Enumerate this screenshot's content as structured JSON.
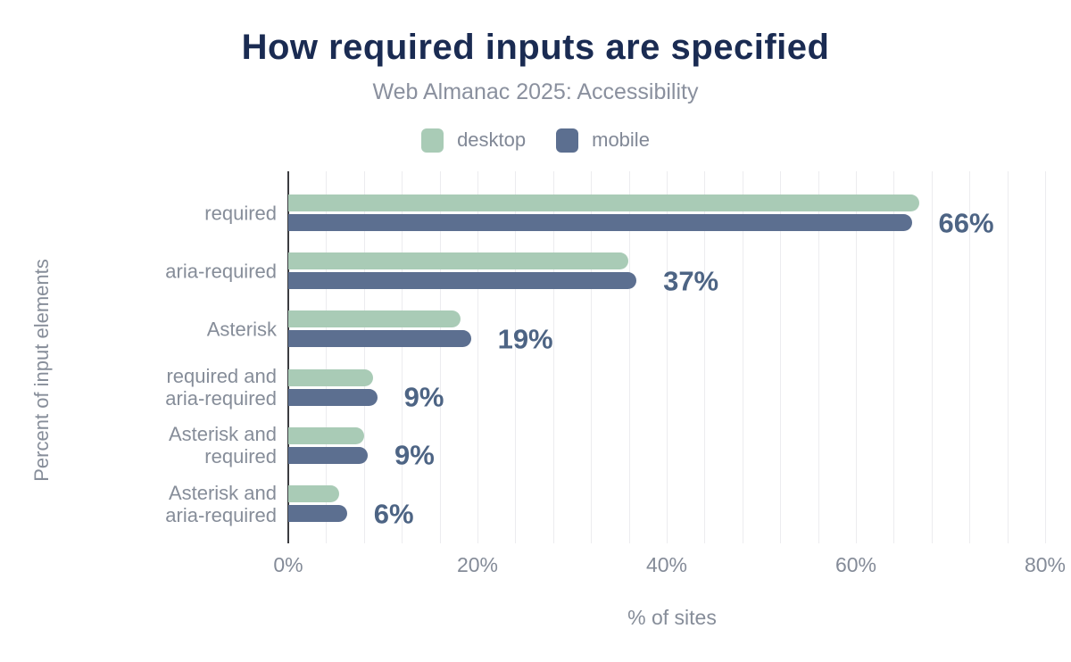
{
  "title": "How required inputs are specified",
  "subtitle": "Web Almanac 2025: Accessibility",
  "legend": [
    {
      "label": "desktop",
      "color": "#a9cbb6"
    },
    {
      "label": "mobile",
      "color": "#5c6f90"
    }
  ],
  "chart_data": {
    "type": "bar",
    "orientation": "horizontal",
    "title": "How required inputs are specified",
    "subtitle": "Web Almanac 2025: Accessibility",
    "xlabel": "% of sites",
    "ylabel": "Percent of input elements",
    "xlim": [
      0,
      80
    ],
    "xticks": [
      {
        "value": 0,
        "label": "0%"
      },
      {
        "value": 20,
        "label": "20%"
      },
      {
        "value": 40,
        "label": "40%"
      },
      {
        "value": 60,
        "label": "60%"
      },
      {
        "value": 80,
        "label": "80%"
      }
    ],
    "grid": {
      "show": true,
      "minor_step_pct": 4,
      "color": "#ececef"
    },
    "legend_position": "top",
    "categories": [
      "required",
      "aria-required",
      "Asterisk",
      "required and\naria-required",
      "Asterisk and\nrequired",
      "Asterisk and\naria-required"
    ],
    "series": [
      {
        "name": "desktop",
        "color": "#a9cbb6",
        "values": [
          66.7,
          35.9,
          18.2,
          9.0,
          8.0,
          5.4
        ]
      },
      {
        "name": "mobile",
        "color": "#5c6f90",
        "values": [
          65.9,
          36.8,
          19.3,
          9.4,
          8.4,
          6.2
        ]
      }
    ],
    "value_labels": [
      "66%",
      "37%",
      "19%",
      "9%",
      "9%",
      "6%"
    ]
  },
  "colors": {
    "background": "#ffffff",
    "title": "#1a2b52",
    "subtitle": "#8a909e",
    "axis_text": "#868d99",
    "tick_text": "#848b98",
    "value_label": "#4d6484",
    "axis_line": "#3b3c40",
    "gridline": "#ececef"
  }
}
